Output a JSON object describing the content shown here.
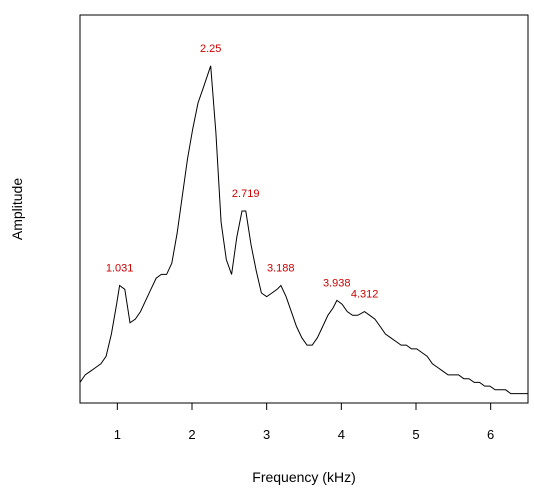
{
  "chart_data": {
    "type": "line",
    "title": "",
    "xlabel": "Frequency (kHz)",
    "ylabel": "Amplitude",
    "xlim": [
      0.5,
      6.5
    ],
    "ylim": [
      0,
      100
    ],
    "x_ticks": [
      1,
      2,
      3,
      4,
      5,
      6
    ],
    "x_tick_labels": [
      "1",
      "2",
      "3",
      "4",
      "5",
      "6"
    ],
    "y_tick_labels_shown": false,
    "grid": false,
    "line_color": "#000000",
    "label_color": "#cc0000",
    "series": [
      {
        "x": [
          0.5,
          0.57,
          0.64,
          0.71,
          0.78,
          0.85,
          0.92,
          0.99,
          1.03,
          1.1,
          1.17,
          1.24,
          1.31,
          1.38,
          1.45,
          1.52,
          1.59,
          1.66,
          1.73,
          1.8,
          1.87,
          1.94,
          2.01,
          2.08,
          2.15,
          2.25,
          2.32,
          2.39,
          2.46,
          2.53,
          2.6,
          2.67,
          2.72,
          2.79,
          2.86,
          2.93,
          3.0,
          3.07,
          3.14,
          3.19,
          3.26,
          3.33,
          3.4,
          3.47,
          3.54,
          3.61,
          3.68,
          3.75,
          3.82,
          3.89,
          3.94,
          4.01,
          4.08,
          4.15,
          4.22,
          4.31,
          4.38,
          4.45,
          4.52,
          4.59,
          4.66,
          4.73,
          4.8,
          4.87,
          4.94,
          5.01,
          5.08,
          5.15,
          5.22,
          5.29,
          5.36,
          5.43,
          5.5,
          5.57,
          5.64,
          5.71,
          5.78,
          5.85,
          5.92,
          5.99,
          6.06,
          6.13,
          6.2,
          6.27,
          6.34,
          6.41,
          6.5
        ],
        "y": [
          5,
          7,
          8,
          9,
          10,
          12,
          18,
          26,
          31,
          30,
          21,
          22,
          24,
          27,
          30,
          33,
          34,
          34,
          37,
          45,
          55,
          65,
          73,
          80,
          84,
          90,
          72,
          48,
          38,
          34,
          44,
          51,
          51,
          42,
          35,
          29,
          28,
          29,
          30,
          31,
          28,
          24,
          20,
          17,
          15,
          15,
          17,
          20,
          23,
          25,
          27,
          26,
          24,
          23,
          23,
          24,
          23,
          22,
          20,
          18,
          17,
          16,
          15,
          15,
          14,
          14,
          13,
          12,
          10,
          9,
          8,
          7,
          7,
          7,
          6,
          6,
          5,
          5,
          4,
          4,
          3,
          3,
          3,
          2,
          2,
          2,
          2
        ]
      }
    ],
    "peak_labels": [
      {
        "x": 1.031,
        "y": 31,
        "text": "1.031"
      },
      {
        "x": 2.25,
        "y": 90,
        "text": "2.25"
      },
      {
        "x": 2.719,
        "y": 51,
        "text": "2.719"
      },
      {
        "x": 3.188,
        "y": 31,
        "text": "3.188"
      },
      {
        "x": 3.938,
        "y": 27,
        "text": "3.938"
      },
      {
        "x": 4.312,
        "y": 24,
        "text": "4.312"
      }
    ]
  }
}
